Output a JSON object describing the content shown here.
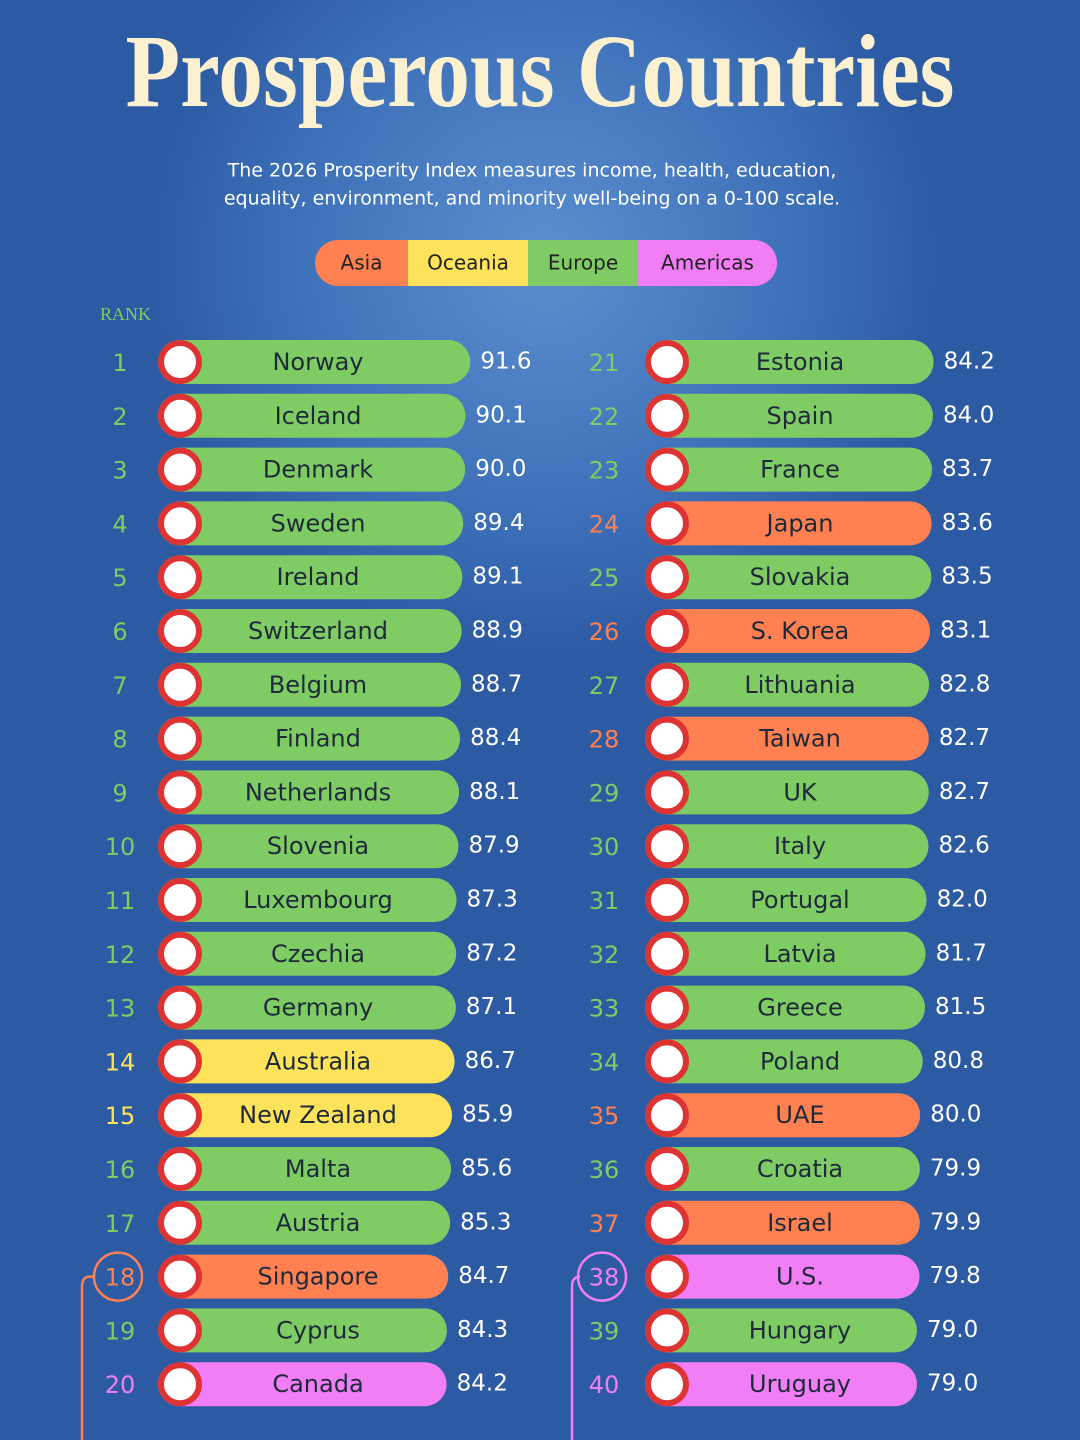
{
  "header": {
    "title": "Prosperous Countries",
    "subtitle_lines": [
      "The 2026 Prosperity Index measures income, health, education,",
      "equality, environment, and minority well-being on a 0-100 scale."
    ]
  },
  "legend": [
    {
      "label": "Asia",
      "color": "#ff8050"
    },
    {
      "label": "Oceania",
      "color": "#fde35c"
    },
    {
      "label": "Europe",
      "color": "#7fcc64"
    },
    {
      "label": "Americas",
      "color": "#f27ef6"
    }
  ],
  "rank_label": "RANK",
  "rows": [
    {
      "rank": 1,
      "country": "Norway",
      "value": "91.6",
      "color": "#7fcc64"
    },
    {
      "rank": 2,
      "country": "Iceland",
      "value": "90.1",
      "color": "#7fcc64"
    },
    {
      "rank": 3,
      "country": "Denmark",
      "value": "90.0",
      "color": "#7fcc64"
    },
    {
      "rank": 4,
      "country": "Sweden",
      "value": "89.4",
      "color": "#7fcc64"
    },
    {
      "rank": 5,
      "country": "Ireland",
      "value": "89.1",
      "color": "#7fcc64"
    },
    {
      "rank": 6,
      "country": "Switzerland",
      "value": "88.9",
      "color": "#7fcc64"
    },
    {
      "rank": 7,
      "country": "Belgium",
      "value": "88.7",
      "color": "#7fcc64"
    },
    {
      "rank": 8,
      "country": "Finland",
      "value": "88.4",
      "color": "#7fcc64"
    },
    {
      "rank": 9,
      "country": "Netherlands",
      "value": "88.1",
      "color": "#7fcc64"
    },
    {
      "rank": 10,
      "country": "Slovenia",
      "value": "87.9",
      "color": "#7fcc64"
    },
    {
      "rank": 11,
      "country": "Luxembourg",
      "value": "87.3",
      "color": "#7fcc64"
    },
    {
      "rank": 12,
      "country": "Czechia",
      "value": "87.2",
      "color": "#7fcc64"
    },
    {
      "rank": 13,
      "country": "Germany",
      "value": "87.1",
      "color": "#7fcc64"
    },
    {
      "rank": 14,
      "country": "Australia",
      "value": "86.7",
      "color": "#fde35c"
    },
    {
      "rank": 15,
      "country": "New Zealand",
      "value": "85.9",
      "color": "#fde35c"
    },
    {
      "rank": 16,
      "country": "Malta",
      "value": "85.6",
      "color": "#7fcc64"
    },
    {
      "rank": 17,
      "country": "Austria",
      "value": "85.3",
      "color": "#7fcc64"
    },
    {
      "rank": 18,
      "country": "Singapore",
      "value": "84.7",
      "color": "#ff8050"
    },
    {
      "rank": 19,
      "country": "Cyprus",
      "value": "84.3",
      "color": "#7fcc64"
    },
    {
      "rank": 20,
      "country": "Canada",
      "value": "84.2",
      "color": "#f27ef6"
    },
    {
      "rank": 21,
      "country": "Estonia",
      "value": "84.2",
      "color": "#7fcc64"
    },
    {
      "rank": 22,
      "country": "Spain",
      "value": "84.0",
      "color": "#7fcc64"
    },
    {
      "rank": 23,
      "country": "France",
      "value": "83.7",
      "color": "#7fcc64"
    },
    {
      "rank": 24,
      "country": "Japan",
      "value": "83.6",
      "color": "#ff8050"
    },
    {
      "rank": 25,
      "country": "Slovakia",
      "value": "83.5",
      "color": "#7fcc64"
    },
    {
      "rank": 26,
      "country": "S. Korea",
      "value": "83.1",
      "color": "#ff8050"
    },
    {
      "rank": 27,
      "country": "Lithuania",
      "value": "82.8",
      "color": "#7fcc64"
    },
    {
      "rank": 28,
      "country": "Taiwan",
      "value": "82.7",
      "color": "#ff8050"
    },
    {
      "rank": 29,
      "country": "UK",
      "value": "82.7",
      "color": "#7fcc64"
    },
    {
      "rank": 30,
      "country": "Italy",
      "value": "82.6",
      "color": "#7fcc64"
    },
    {
      "rank": 31,
      "country": "Portugal",
      "value": "82.0",
      "color": "#7fcc64"
    },
    {
      "rank": 32,
      "country": "Latvia",
      "value": "81.7",
      "color": "#7fcc64"
    },
    {
      "rank": 33,
      "country": "Greece",
      "value": "81.5",
      "color": "#7fcc64"
    },
    {
      "rank": 34,
      "country": "Poland",
      "value": "80.8",
      "color": "#7fcc64"
    },
    {
      "rank": 35,
      "country": "UAE",
      "value": "80.0",
      "color": "#ff8050"
    },
    {
      "rank": 36,
      "country": "Croatia",
      "value": "79.9",
      "color": "#7fcc64"
    },
    {
      "rank": 37,
      "country": "Israel",
      "value": "79.9",
      "color": "#ff8050"
    },
    {
      "rank": 38,
      "country": "U.S.",
      "value": "79.8",
      "color": "#f27ef6"
    },
    {
      "rank": 39,
      "country": "Hungary",
      "value": "79.0",
      "color": "#7fcc64"
    },
    {
      "rank": 40,
      "country": "Uruguay",
      "value": "79.0",
      "color": "#f27ef6"
    }
  ]
}
